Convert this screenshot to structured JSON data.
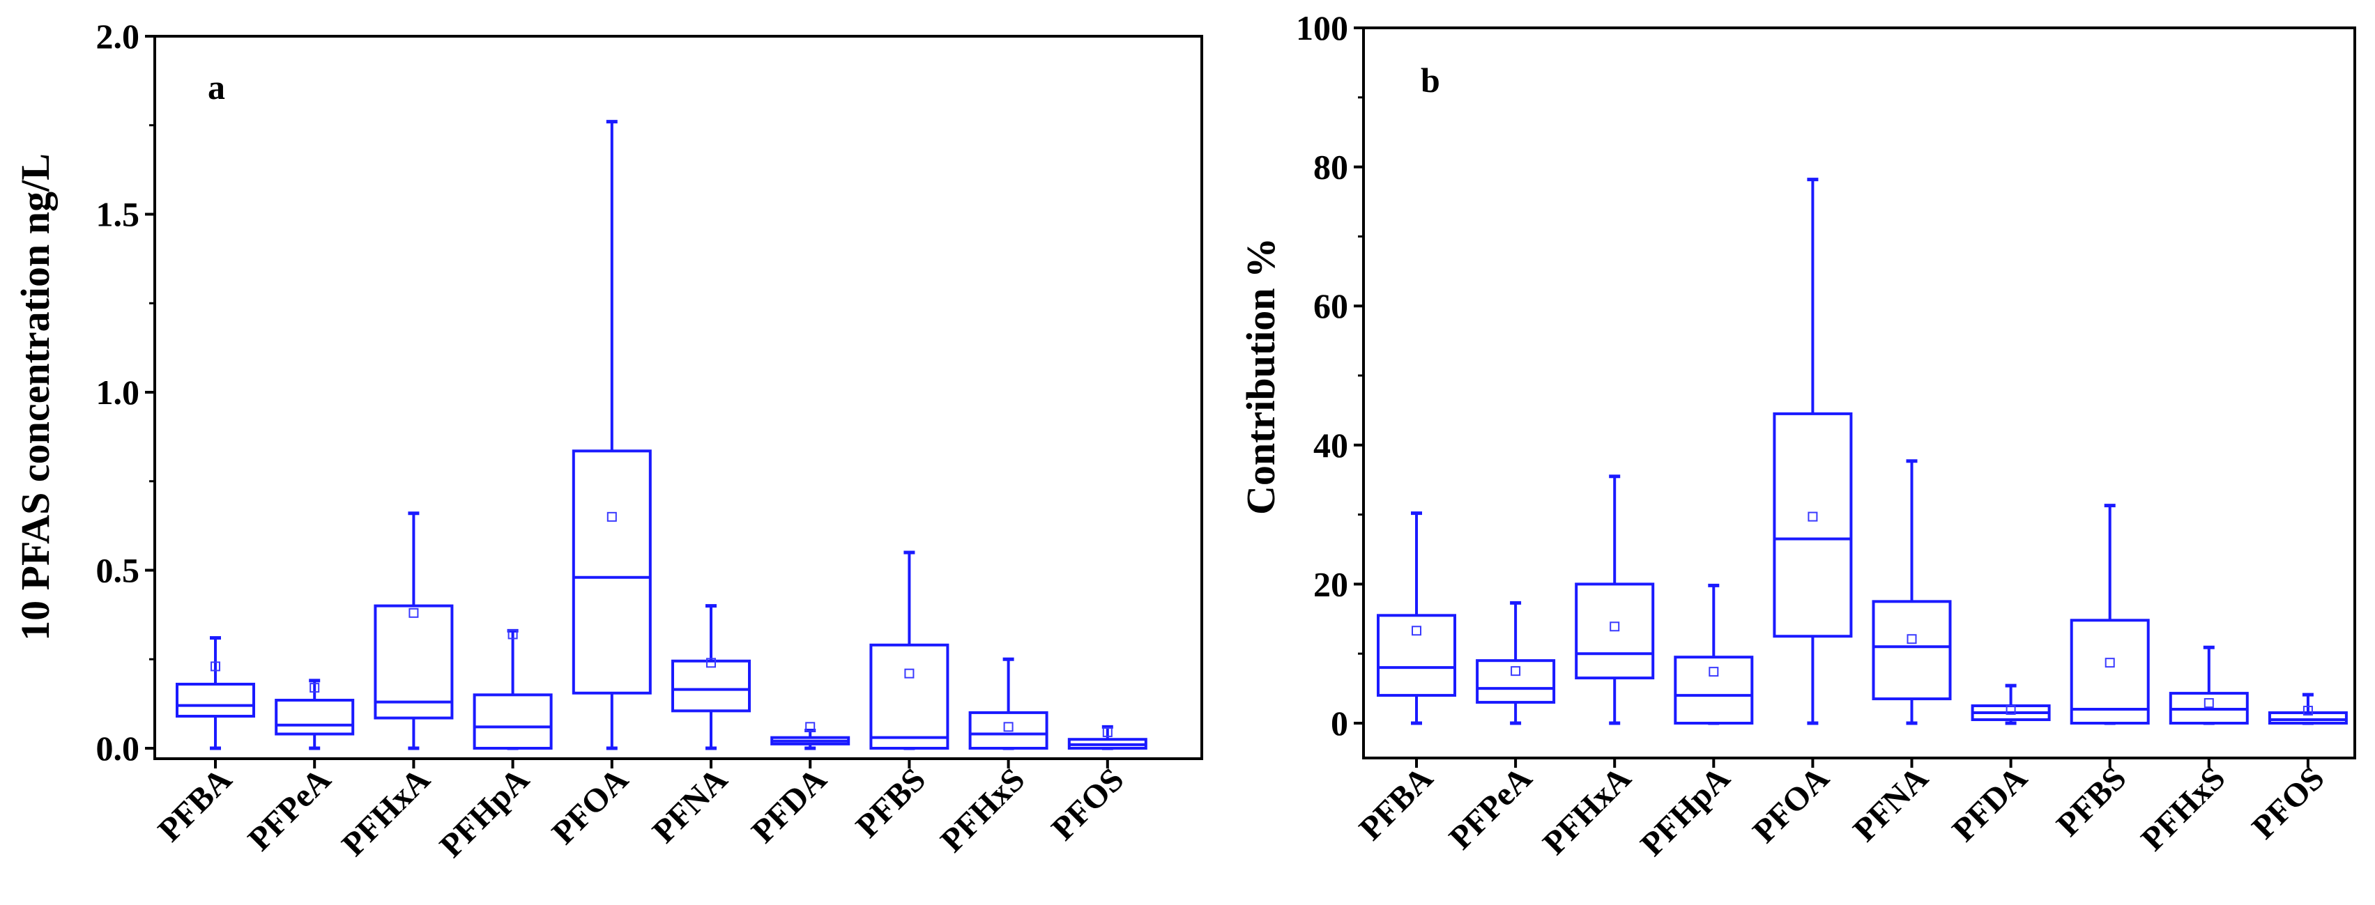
{
  "colors": {
    "box": "#1a1aff",
    "axis": "#000000",
    "mean_marker": "#3a3aff"
  },
  "chart_data": [
    {
      "type": "boxplot",
      "panel": "a",
      "ylabel": "10 PFAS concentration ng/L",
      "ylim": [
        -0.05,
        2.0
      ],
      "yticks": [
        "0.0",
        "0.5",
        "1.0",
        "1.5",
        "2.0"
      ],
      "ytick_values": [
        0,
        0.5,
        1.0,
        1.5,
        2.0
      ],
      "categories": [
        "PFBA",
        "PFPeA",
        "PFHxA",
        "PFHpA",
        "PFOA",
        "PFNA",
        "PFDA",
        "PFBS",
        "PFHxS",
        "PFOS"
      ],
      "boxes": [
        {
          "min": 0.0,
          "q1": 0.09,
          "median": 0.12,
          "q3": 0.18,
          "max": 0.31,
          "mean": 0.23
        },
        {
          "min": 0.0,
          "q1": 0.04,
          "median": 0.065,
          "q3": 0.135,
          "max": 0.19,
          "mean": 0.17
        },
        {
          "min": 0.0,
          "q1": 0.085,
          "median": 0.13,
          "q3": 0.4,
          "max": 0.66,
          "mean": 0.38
        },
        {
          "min": 0.0,
          "q1": 0.0,
          "median": 0.06,
          "q3": 0.15,
          "max": 0.33,
          "mean": 0.32
        },
        {
          "min": 0.0,
          "q1": 0.155,
          "median": 0.48,
          "q3": 0.835,
          "max": 1.76,
          "mean": 0.65
        },
        {
          "min": 0.0,
          "q1": 0.105,
          "median": 0.165,
          "q3": 0.245,
          "max": 0.4,
          "mean": 0.24
        },
        {
          "min": 0.0,
          "q1": 0.012,
          "median": 0.02,
          "q3": 0.03,
          "max": 0.05,
          "mean": 0.06
        },
        {
          "min": 0.0,
          "q1": 0.0,
          "median": 0.03,
          "q3": 0.29,
          "max": 0.55,
          "mean": 0.21
        },
        {
          "min": 0.0,
          "q1": 0.0,
          "median": 0.04,
          "q3": 0.1,
          "max": 0.25,
          "mean": 0.06
        },
        {
          "min": 0.0,
          "q1": 0.0,
          "median": 0.01,
          "q3": 0.025,
          "max": 0.06,
          "mean": 0.045
        }
      ]
    },
    {
      "type": "boxplot",
      "panel": "b",
      "ylabel": "Contribution %",
      "ylim": [
        -5,
        100
      ],
      "yticks": [
        "0",
        "20",
        "40",
        "60",
        "80",
        "100"
      ],
      "ytick_values": [
        0,
        20,
        40,
        60,
        80,
        100
      ],
      "categories": [
        "PFBA",
        "PFPeA",
        "PFHxA",
        "PFHpA",
        "PFOA",
        "PFNA",
        "PFDA",
        "PFBS",
        "PFHxS",
        "PFOS"
      ],
      "boxes": [
        {
          "min": 0.0,
          "q1": 4.0,
          "median": 8.0,
          "q3": 15.5,
          "max": 30.2,
          "mean": 13.3
        },
        {
          "min": 0.0,
          "q1": 3.0,
          "median": 5.0,
          "q3": 9.0,
          "max": 17.3,
          "mean": 7.5
        },
        {
          "min": 0.0,
          "q1": 6.5,
          "median": 10.0,
          "q3": 20.0,
          "max": 35.5,
          "mean": 13.9
        },
        {
          "min": 0.0,
          "q1": 0.0,
          "median": 4.0,
          "q3": 9.5,
          "max": 19.8,
          "mean": 7.4
        },
        {
          "min": 0.0,
          "q1": 12.5,
          "median": 26.5,
          "q3": 44.5,
          "max": 78.2,
          "mean": 29.7
        },
        {
          "min": 0.0,
          "q1": 3.5,
          "median": 11.0,
          "q3": 17.5,
          "max": 37.7,
          "mean": 12.1
        },
        {
          "min": 0.0,
          "q1": 0.5,
          "median": 1.5,
          "q3": 2.5,
          "max": 5.4,
          "mean": 1.9
        },
        {
          "min": 0.0,
          "q1": 0.0,
          "median": 2.0,
          "q3": 14.8,
          "max": 31.3,
          "mean": 8.7
        },
        {
          "min": 0.0,
          "q1": 0.0,
          "median": 2.0,
          "q3": 4.3,
          "max": 10.9,
          "mean": 2.9
        },
        {
          "min": 0.0,
          "q1": 0.0,
          "median": 0.5,
          "q3": 1.5,
          "max": 4.1,
          "mean": 1.8
        }
      ]
    }
  ]
}
